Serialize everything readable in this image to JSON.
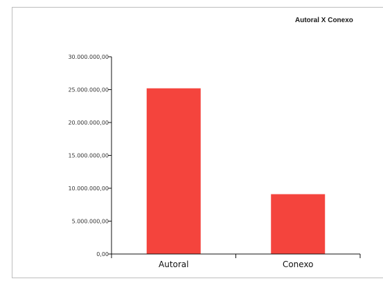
{
  "colors": {
    "bar": "#f4443d",
    "axis": "#111111",
    "frame": "#bdbdbd"
  },
  "chart_data": {
    "type": "bar",
    "title": "Autoral X Conexo",
    "categories": [
      "Autoral",
      "Conexo"
    ],
    "values": [
      25200000,
      9100000
    ],
    "ylim": [
      0,
      30000000
    ],
    "yticks": [
      0,
      5000000,
      10000000,
      15000000,
      20000000,
      25000000,
      30000000
    ],
    "ytick_labels": [
      "0,00",
      "5.000.000,00",
      "10.000.000,00",
      "15.000.000,00",
      "20.000.000,00",
      "25.000.000,00",
      "30.000.000,00"
    ],
    "xlabel": "",
    "ylabel": "",
    "grid": false,
    "legend": "none"
  }
}
